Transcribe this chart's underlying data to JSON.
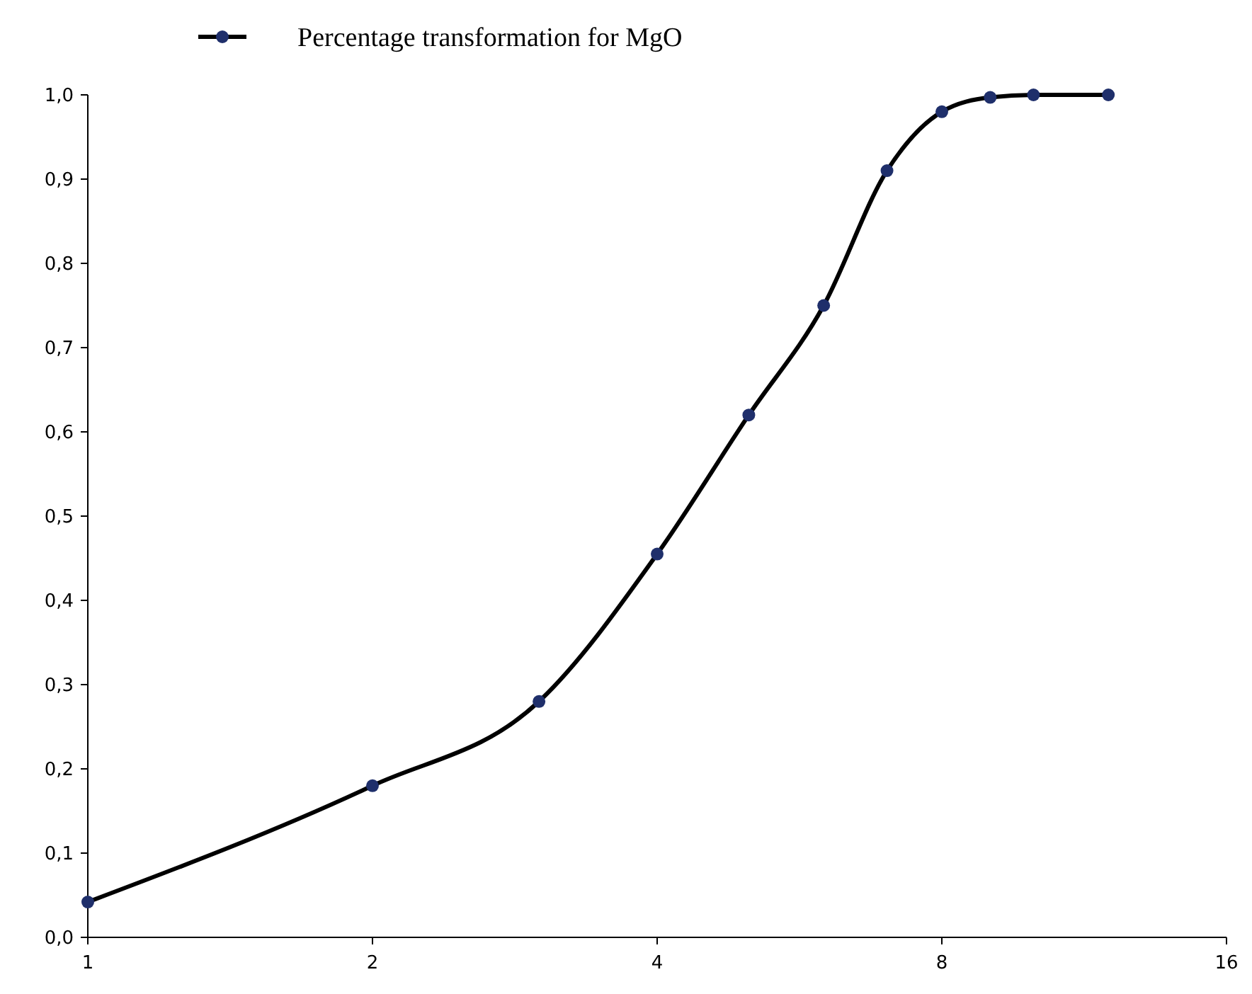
{
  "chart_data": {
    "type": "line",
    "log": "x",
    "x": [
      1,
      2,
      3,
      4,
      5,
      6,
      7,
      8,
      9,
      10,
      12
    ],
    "series": [
      {
        "name": "Percentage transformation for MgO",
        "color": "#000000",
        "values": [
          0.042,
          0.18,
          0.28,
          0.455,
          0.62,
          0.75,
          0.91,
          0.98,
          0.997,
          1.0,
          1.0
        ],
        "colors": [
          "#1f2f6b",
          "#1f2f6b",
          "#1f2f6b",
          "#1f2f6b",
          "#1f2f6b",
          "#1f2f6b",
          "#1f2f6b",
          "#1f2f6b",
          "#1f2f6b",
          "#1f2f6b",
          "#1f2f6b"
        ]
      }
    ],
    "xlim": [
      1,
      16
    ],
    "xticks": [
      1,
      2,
      4,
      8,
      16
    ],
    "ylim": [
      0,
      1
    ],
    "yticks": [
      {
        "value": 0,
        "label": "0,0"
      },
      {
        "value": 0.1,
        "label": "0,1"
      },
      {
        "value": 0.2,
        "label": "0,2"
      },
      {
        "value": 0.3,
        "label": "0,3"
      },
      {
        "value": 0.4,
        "label": "0,4"
      },
      {
        "value": 0.5,
        "label": "0,5"
      },
      {
        "value": 0.6,
        "label": "0,6"
      },
      {
        "value": 0.7,
        "label": "0,7"
      },
      {
        "value": 0.8,
        "label": "0,8"
      },
      {
        "value": 0.9,
        "label": "0,9"
      },
      {
        "value": 1,
        "label": "1,0"
      }
    ],
    "marker": "circle",
    "grid": false,
    "legend": "top",
    "line_style": "solid"
  }
}
